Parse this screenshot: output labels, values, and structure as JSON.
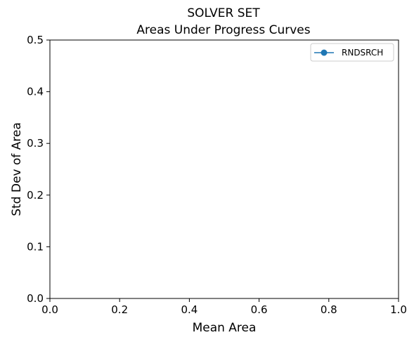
{
  "chart_data": {
    "type": "scatter",
    "title": "SOLVER SET",
    "subtitle": "Areas Under Progress Curves",
    "xlabel": "Mean Area",
    "ylabel": "Std Dev of Area",
    "xlim": [
      0,
      1
    ],
    "ylim": [
      0,
      0.5
    ],
    "x_ticks": [
      "0.0",
      "0.2",
      "0.4",
      "0.6",
      "0.8",
      "1.0"
    ],
    "y_ticks": [
      "0.0",
      "0.1",
      "0.2",
      "0.3",
      "0.4",
      "0.5"
    ],
    "grid": false,
    "legend_position": "top-right",
    "series": [
      {
        "name": "RNDSRCH",
        "color": "#1f77b4",
        "marker": "circle",
        "points": []
      }
    ]
  }
}
